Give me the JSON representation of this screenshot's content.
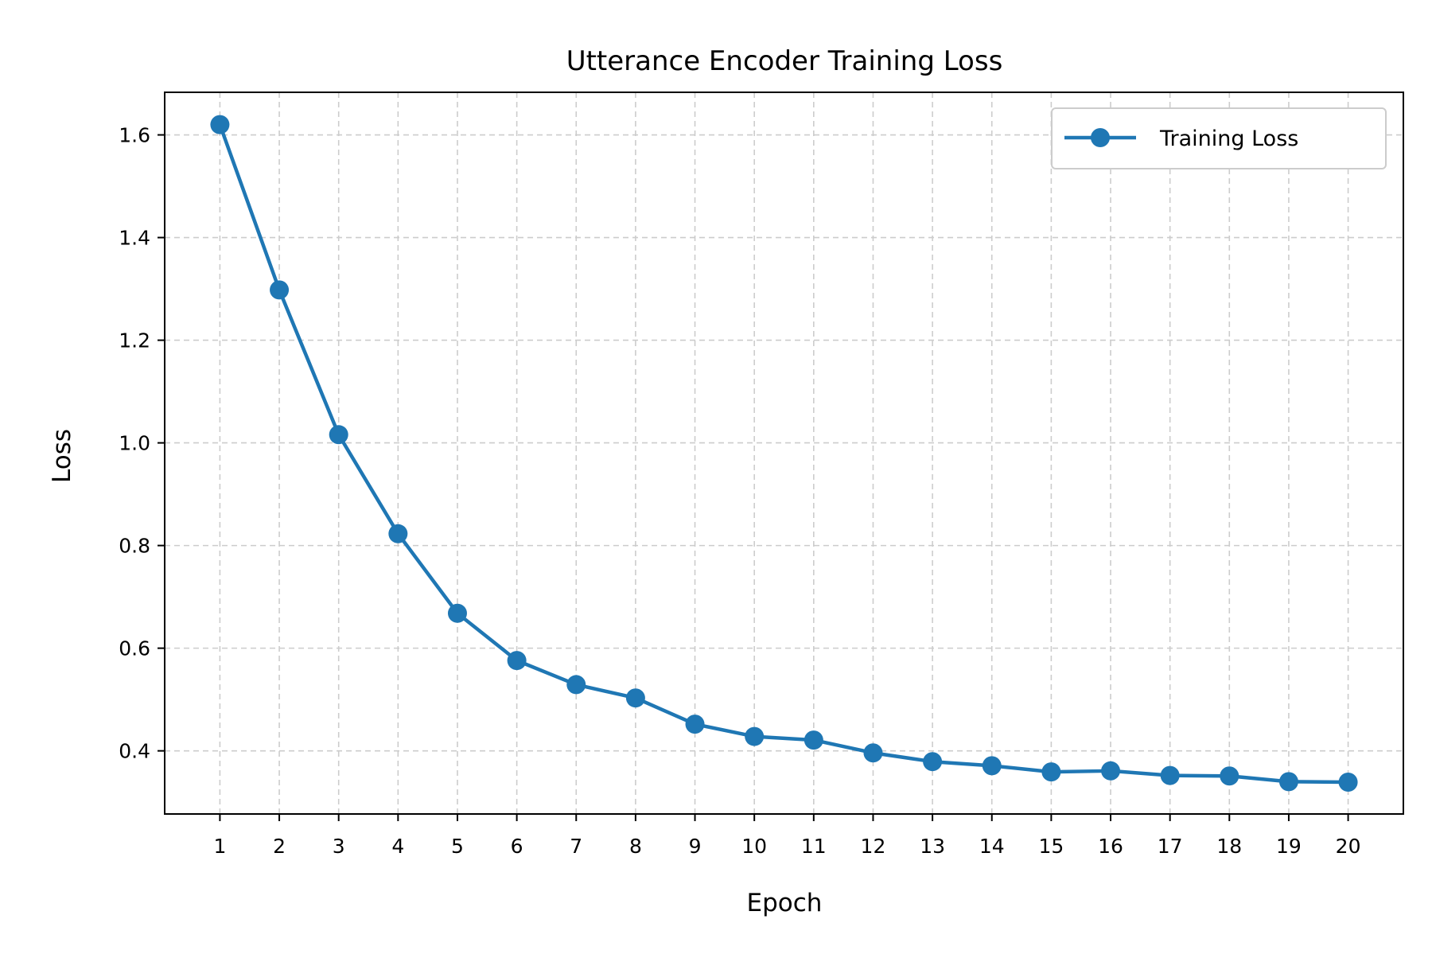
{
  "chart_data": {
    "type": "line",
    "title": "Utterance Encoder Training Loss",
    "xlabel": "Epoch",
    "ylabel": "Loss",
    "x": [
      1,
      2,
      3,
      4,
      5,
      6,
      7,
      8,
      9,
      10,
      11,
      12,
      13,
      14,
      15,
      16,
      17,
      18,
      19,
      20
    ],
    "series": [
      {
        "name": "Training Loss",
        "color": "#1f77b4",
        "marker": "circle",
        "values": [
          1.62,
          1.298,
          1.016,
          0.823,
          0.668,
          0.576,
          0.529,
          0.503,
          0.452,
          0.428,
          0.421,
          0.396,
          0.379,
          0.371,
          0.359,
          0.361,
          0.352,
          0.351,
          0.34,
          0.339
        ]
      }
    ],
    "xlim": [
      0.07,
      20.93
    ],
    "ylim": [
      0.277,
      1.683
    ],
    "xticks": [
      1,
      2,
      3,
      4,
      5,
      6,
      7,
      8,
      9,
      10,
      11,
      12,
      13,
      14,
      15,
      16,
      17,
      18,
      19,
      20
    ],
    "yticks": [
      0.4,
      0.6,
      0.8,
      1.0,
      1.2,
      1.4,
      1.6
    ],
    "ytick_labels": [
      "0.4",
      "0.6",
      "0.8",
      "1.0",
      "1.2",
      "1.4",
      "1.6"
    ],
    "grid": true,
    "grid_style": "dashed",
    "legend_position": "top-right"
  }
}
